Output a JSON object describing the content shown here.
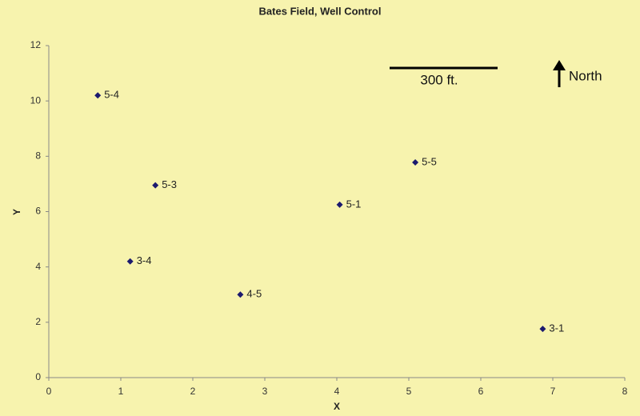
{
  "chart_data": {
    "type": "scatter",
    "title": "Bates Field, Well Control",
    "x_label": "X",
    "y_label": "Y",
    "x": [
      0.68,
      1.48,
      1.13,
      2.66,
      4.04,
      5.09,
      6.86
    ],
    "values": [
      10.2,
      6.95,
      4.2,
      3.0,
      6.25,
      7.78,
      1.76
    ],
    "labels": [
      "5-4",
      "5-3",
      "3-4",
      "4-5",
      "5-1",
      "5-5",
      "3-1"
    ],
    "color": "#1c1a6e",
    "xlim": [
      0,
      8
    ],
    "xticks": [
      0,
      1,
      2,
      3,
      4,
      5,
      6,
      7,
      8
    ],
    "ylim": [
      0,
      12
    ],
    "yticks": [
      0,
      2,
      4,
      6,
      8,
      10,
      12
    ],
    "annotations": [
      "300 ft.",
      "North"
    ]
  }
}
